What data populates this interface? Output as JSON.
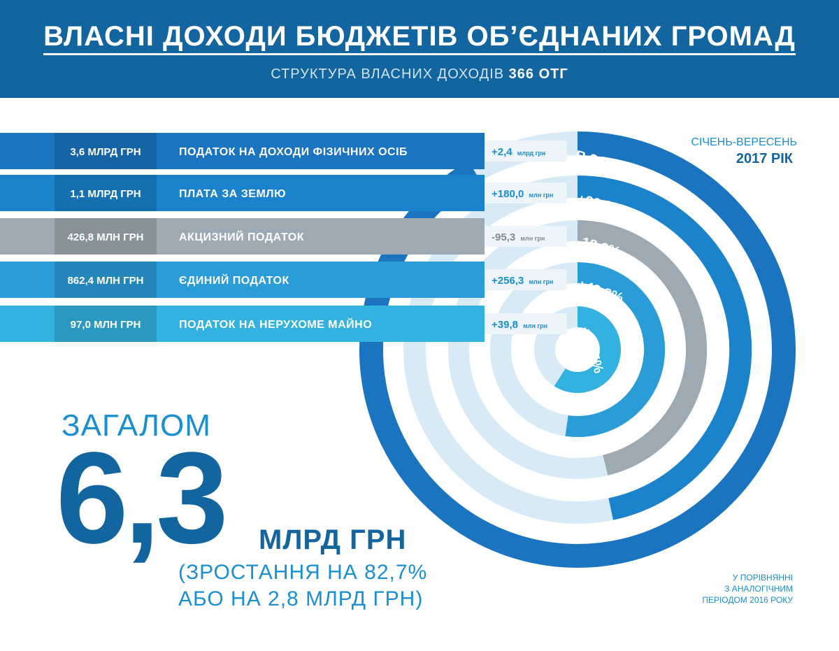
{
  "header": {
    "title": "ВЛАСНІ ДОХОДИ БЮДЖЕТІВ ОБ’ЄДНАНИХ ГРОМАД",
    "subtitle_prefix": "СТРУКТУРА ВЛАСНИХ ДОХОДІВ",
    "subtitle_bold": "366 ОТГ"
  },
  "period": {
    "label": "СІЧЕНЬ-ВЕРЕСЕНЬ",
    "year": "2017 РІК"
  },
  "total": {
    "caption": "ЗАГАЛОМ",
    "value": "6,3",
    "unit": "МЛРД ГРН",
    "growth_line1": "(ЗРОСТАННЯ НА 82,7%",
    "growth_line2": "АБО НА 2,8 МЛРД ГРН)"
  },
  "comparison_note": [
    "У ПОРІВНЯННІ",
    "З АНАЛОГІЧНИМ",
    "ПЕРІОДОМ 2016 РОКУ"
  ],
  "colors": {
    "header": "#12659e",
    "row1": "#1a74c0",
    "row2": "#1a83cb",
    "row3": "#9eaab3",
    "row4": "#2a9cd8",
    "row5": "#33b2e0",
    "ring_track": "#d8eaf5",
    "decrease_text": "#7f8c96",
    "increase_text": "#1a8fd0"
  },
  "chart_data": {
    "type": "bar",
    "categories": [
      "ПОДАТОК НА ДОХОДИ ФІЗИЧНИХ ОСІБ",
      "ПЛАТА ЗА ЗЕМЛЮ",
      "АКЦИЗНИЙ ПОДАТОК",
      "ЄДИНИЙ ПОДАТОК",
      "ПОДАТОК НА НЕРУХОМЕ МАЙНО"
    ],
    "amount_labels": [
      "3,6 МЛРД ГРН",
      "1,1 МЛРД ГРН",
      "426,8 МЛН ГРН",
      "862,4 МЛН ГРН",
      "97,0 МЛН ГРН"
    ],
    "values_mln_uah": [
      3600,
      1100,
      426.8,
      862.4,
      97.0
    ],
    "changes": [
      {
        "value": "+2,4",
        "unit": "млрд грн"
      },
      {
        "value": "+180,0",
        "unit": "млн грн"
      },
      {
        "value": "-95,3",
        "unit": "млн грн"
      },
      {
        "value": "+256,3",
        "unit": "млн грн"
      },
      {
        "value": "+39,8",
        "unit": "млн грн"
      }
    ],
    "change_pct_labels": [
      "В 3 РАЗИ",
      "+20,2%",
      "-18,3%",
      "+42,3%",
      "+69,5%"
    ],
    "change_pct": [
      200,
      20.2,
      -18.3,
      42.3,
      69.5
    ]
  }
}
